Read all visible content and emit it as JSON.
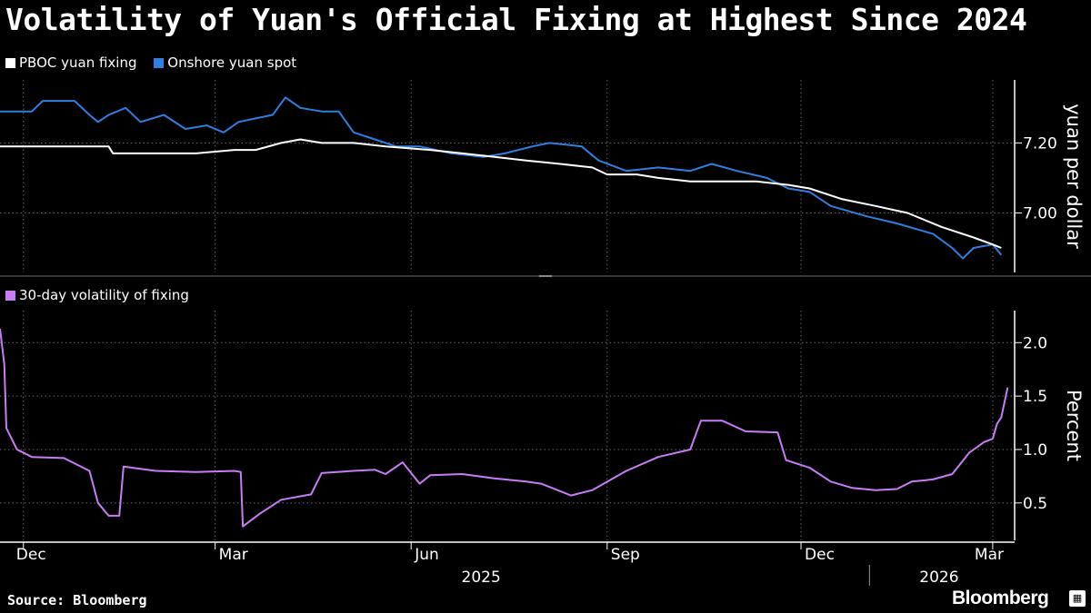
{
  "title": "Volatility of Yuan's Official Fixing at Highest Since 2024",
  "source": "Source: Bloomberg",
  "brand": "Bloomberg",
  "colors": {
    "fixing": "#ffffff",
    "spot": "#2f7fe0",
    "volatility": "#c97cf5",
    "grid": "#6a6a6a",
    "axis": "#ffffff"
  },
  "chart_data": [
    {
      "type": "line",
      "ylabel": "yuan per dollar",
      "yticks": [
        7.0,
        7.2
      ],
      "ylim": [
        6.83,
        7.38
      ],
      "xlim": [
        "2024-11-20",
        "2026-03-10"
      ],
      "x_ticks": [
        {
          "label": "Dec",
          "date": "2024-12-01"
        },
        {
          "label": "Mar",
          "date": "2025-03-01"
        },
        {
          "label": "Jun",
          "date": "2025-06-01"
        },
        {
          "label": "Sep",
          "date": "2025-09-01"
        },
        {
          "label": "Dec",
          "date": "2025-12-01"
        },
        {
          "label": "Mar",
          "date": "2026-03-01"
        }
      ],
      "year_labels": [
        {
          "label": "2025",
          "date": "2025-07-01"
        },
        {
          "label": "2026",
          "date": "2026-02-01"
        }
      ],
      "legend_position": "top-left",
      "series": [
        {
          "name": "PBOC yuan fixing",
          "points": [
            [
              "2024-11-20",
              7.19
            ],
            [
              "2024-12-15",
              7.19
            ],
            [
              "2025-01-10",
              7.19
            ],
            [
              "2025-01-12",
              7.17
            ],
            [
              "2025-02-01",
              7.17
            ],
            [
              "2025-02-20",
              7.17
            ],
            [
              "2025-03-10",
              7.18
            ],
            [
              "2025-03-20",
              7.18
            ],
            [
              "2025-04-01",
              7.2
            ],
            [
              "2025-04-10",
              7.21
            ],
            [
              "2025-04-20",
              7.2
            ],
            [
              "2025-05-05",
              7.2
            ],
            [
              "2025-05-20",
              7.19
            ],
            [
              "2025-06-10",
              7.18
            ],
            [
              "2025-06-25",
              7.17
            ],
            [
              "2025-07-10",
              7.16
            ],
            [
              "2025-07-25",
              7.15
            ],
            [
              "2025-08-10",
              7.14
            ],
            [
              "2025-08-25",
              7.13
            ],
            [
              "2025-09-01",
              7.11
            ],
            [
              "2025-09-15",
              7.11
            ],
            [
              "2025-09-25",
              7.1
            ],
            [
              "2025-10-10",
              7.09
            ],
            [
              "2025-10-25",
              7.09
            ],
            [
              "2025-11-10",
              7.09
            ],
            [
              "2025-11-25",
              7.08
            ],
            [
              "2025-12-05",
              7.07
            ],
            [
              "2025-12-20",
              7.04
            ],
            [
              "2026-01-05",
              7.02
            ],
            [
              "2026-01-20",
              7.0
            ],
            [
              "2026-02-05",
              6.96
            ],
            [
              "2026-02-20",
              6.93
            ],
            [
              "2026-03-01",
              6.91
            ],
            [
              "2026-03-05",
              6.9
            ]
          ]
        },
        {
          "name": "Onshore yuan spot",
          "points": [
            [
              "2024-11-20",
              7.29
            ],
            [
              "2024-12-05",
              7.29
            ],
            [
              "2024-12-10",
              7.32
            ],
            [
              "2024-12-25",
              7.32
            ],
            [
              "2025-01-01",
              7.28
            ],
            [
              "2025-01-05",
              7.26
            ],
            [
              "2025-01-10",
              7.28
            ],
            [
              "2025-01-18",
              7.3
            ],
            [
              "2025-01-25",
              7.26
            ],
            [
              "2025-02-05",
              7.28
            ],
            [
              "2025-02-15",
              7.24
            ],
            [
              "2025-02-25",
              7.25
            ],
            [
              "2025-03-05",
              7.23
            ],
            [
              "2025-03-12",
              7.26
            ],
            [
              "2025-03-20",
              7.27
            ],
            [
              "2025-03-28",
              7.28
            ],
            [
              "2025-04-03",
              7.33
            ],
            [
              "2025-04-10",
              7.3
            ],
            [
              "2025-04-20",
              7.29
            ],
            [
              "2025-04-28",
              7.29
            ],
            [
              "2025-05-05",
              7.23
            ],
            [
              "2025-05-15",
              7.21
            ],
            [
              "2025-05-25",
              7.19
            ],
            [
              "2025-06-05",
              7.19
            ],
            [
              "2025-06-20",
              7.17
            ],
            [
              "2025-07-05",
              7.16
            ],
            [
              "2025-07-15",
              7.17
            ],
            [
              "2025-07-28",
              7.19
            ],
            [
              "2025-08-05",
              7.2
            ],
            [
              "2025-08-20",
              7.19
            ],
            [
              "2025-08-28",
              7.15
            ],
            [
              "2025-09-10",
              7.12
            ],
            [
              "2025-09-25",
              7.13
            ],
            [
              "2025-10-10",
              7.12
            ],
            [
              "2025-10-20",
              7.14
            ],
            [
              "2025-11-01",
              7.12
            ],
            [
              "2025-11-15",
              7.1
            ],
            [
              "2025-11-25",
              7.07
            ],
            [
              "2025-12-05",
              7.06
            ],
            [
              "2025-12-15",
              7.02
            ],
            [
              "2026-01-01",
              6.99
            ],
            [
              "2026-01-15",
              6.97
            ],
            [
              "2026-02-01",
              6.94
            ],
            [
              "2026-02-10",
              6.9
            ],
            [
              "2026-02-15",
              6.87
            ],
            [
              "2026-02-20",
              6.9
            ],
            [
              "2026-03-01",
              6.91
            ],
            [
              "2026-03-05",
              6.88
            ]
          ]
        }
      ]
    },
    {
      "type": "line",
      "ylabel": "Percent",
      "yticks": [
        0.5,
        1.0,
        1.5,
        2.0
      ],
      "ylim": [
        0.15,
        2.3
      ],
      "xlim": [
        "2024-11-20",
        "2026-03-10"
      ],
      "legend_position": "top-left",
      "series": [
        {
          "name": "30-day volatility of fixing",
          "points": [
            [
              "2024-11-20",
              2.13
            ],
            [
              "2024-11-22",
              1.8
            ],
            [
              "2024-11-23",
              1.2
            ],
            [
              "2024-11-28",
              1.0
            ],
            [
              "2024-12-05",
              0.93
            ],
            [
              "2024-12-20",
              0.92
            ],
            [
              "2025-01-01",
              0.8
            ],
            [
              "2025-01-05",
              0.5
            ],
            [
              "2025-01-10",
              0.38
            ],
            [
              "2025-01-15",
              0.38
            ],
            [
              "2025-01-17",
              0.84
            ],
            [
              "2025-02-01",
              0.8
            ],
            [
              "2025-02-20",
              0.79
            ],
            [
              "2025-03-10",
              0.8
            ],
            [
              "2025-03-13",
              0.79
            ],
            [
              "2025-03-14",
              0.28
            ],
            [
              "2025-03-22",
              0.4
            ],
            [
              "2025-04-01",
              0.53
            ],
            [
              "2025-04-15",
              0.58
            ],
            [
              "2025-04-20",
              0.78
            ],
            [
              "2025-05-05",
              0.8
            ],
            [
              "2025-05-15",
              0.81
            ],
            [
              "2025-05-20",
              0.77
            ],
            [
              "2025-05-28",
              0.88
            ],
            [
              "2025-06-05",
              0.68
            ],
            [
              "2025-06-10",
              0.76
            ],
            [
              "2025-06-25",
              0.77
            ],
            [
              "2025-07-10",
              0.73
            ],
            [
              "2025-07-25",
              0.7
            ],
            [
              "2025-08-01",
              0.68
            ],
            [
              "2025-08-15",
              0.57
            ],
            [
              "2025-08-25",
              0.62
            ],
            [
              "2025-09-10",
              0.8
            ],
            [
              "2025-09-25",
              0.93
            ],
            [
              "2025-10-10",
              1.0
            ],
            [
              "2025-10-15",
              1.27
            ],
            [
              "2025-10-25",
              1.27
            ],
            [
              "2025-11-05",
              1.17
            ],
            [
              "2025-11-20",
              1.16
            ],
            [
              "2025-11-24",
              0.9
            ],
            [
              "2025-12-05",
              0.83
            ],
            [
              "2025-12-15",
              0.7
            ],
            [
              "2025-12-25",
              0.64
            ],
            [
              "2026-01-05",
              0.62
            ],
            [
              "2026-01-15",
              0.63
            ],
            [
              "2026-01-22",
              0.7
            ],
            [
              "2026-02-01",
              0.72
            ],
            [
              "2026-02-10",
              0.77
            ],
            [
              "2026-02-18",
              0.97
            ],
            [
              "2026-02-25",
              1.07
            ],
            [
              "2026-03-01",
              1.1
            ],
            [
              "2026-03-03",
              1.24
            ],
            [
              "2026-03-05",
              1.3
            ],
            [
              "2026-03-08",
              1.58
            ]
          ]
        }
      ]
    }
  ]
}
